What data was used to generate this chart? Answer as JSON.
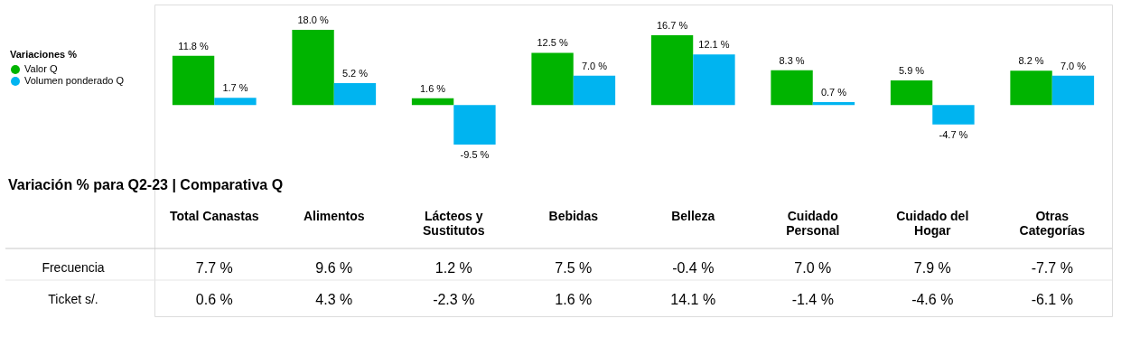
{
  "chart_data": {
    "type": "bar",
    "legend_title": "Variaciones %",
    "legend": "left",
    "categories": [
      "Total Canastas",
      "Alimentos",
      "Lácteos y Sustitutos",
      "Bebidas",
      "Belleza",
      "Cuidado Personal",
      "Cuidado del Hogar",
      "Otras Categorías"
    ],
    "series": [
      {
        "name": "Valor Q",
        "color": "#00b400",
        "values": [
          11.8,
          18.0,
          1.6,
          12.5,
          16.7,
          8.3,
          5.9,
          8.2
        ],
        "value_labels": [
          "11.8 %",
          "18.0 %",
          "1.6 %",
          "12.5 %",
          "16.7 %",
          "8.3 %",
          "5.9 %",
          "8.2 %"
        ]
      },
      {
        "name": "Volumen ponderado Q",
        "color": "#00b4f0",
        "values": [
          1.7,
          5.2,
          -9.5,
          7.0,
          12.1,
          0.7,
          -4.7,
          7.0
        ],
        "value_labels": [
          "1.7 %",
          "5.2 %",
          "-9.5 %",
          "7.0 %",
          "12.1 %",
          "0.7 %",
          "-4.7 %",
          "7.0 %"
        ]
      }
    ],
    "annotations": [
      "Variación % para Q2-23 | Comparativa Q",
      "Frecuencia",
      "7.7 %",
      "9.6 %",
      "1.2 %",
      "7.5 %",
      "-0.4 %",
      "7.0 %",
      "7.9 %",
      "-7.7 %",
      "Ticket s/.",
      "0.6 %",
      "4.3 %",
      "-2.3 %",
      "1.6 %",
      "14.1 %",
      "-1.4 %",
      "-4.6 %",
      "-6.1 %"
    ]
  }
}
